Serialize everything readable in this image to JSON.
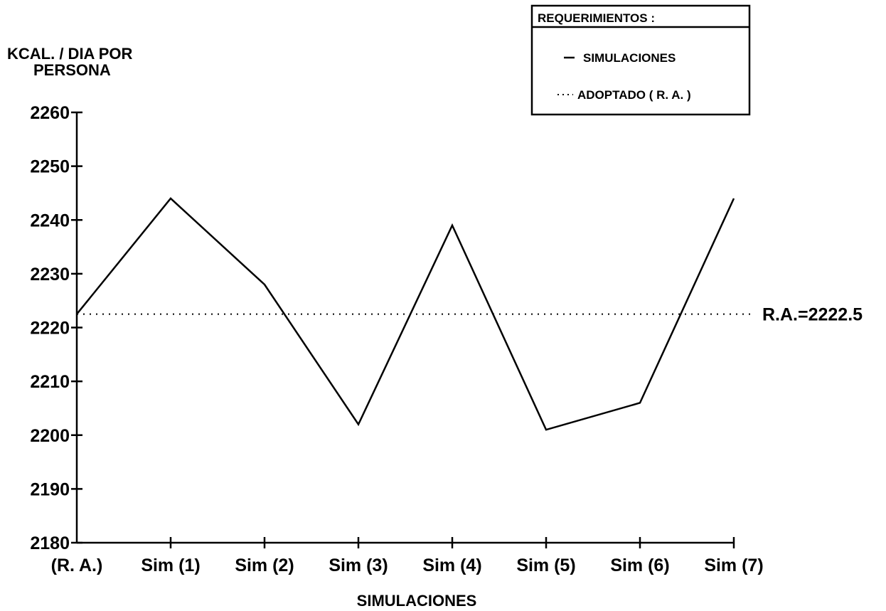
{
  "chart_data": {
    "type": "line",
    "title": "",
    "ylabel_line1": "KCAL. / DIA POR",
    "ylabel_line2": "PERSONA",
    "xlabel": "SIMULACIONES",
    "categories": [
      "(R. A.)",
      "Sim (1)",
      "Sim (2)",
      "Sim (3)",
      "Sim (4)",
      "Sim (5)",
      "Sim (6)",
      "Sim (7)"
    ],
    "series": [
      {
        "name": "SIMULACIONES",
        "values": [
          2222.5,
          2244,
          2228,
          2202,
          2239,
          2201,
          2206,
          2244
        ],
        "style": "solid"
      }
    ],
    "reference_line": {
      "name": "ADOPTADO ( R. A. )",
      "value": 2222.5,
      "label": "R.A.=2222.5",
      "style": "dotted"
    },
    "ylim": [
      2180,
      2260
    ],
    "yticks": [
      2180,
      2190,
      2200,
      2210,
      2220,
      2230,
      2240,
      2250,
      2260
    ],
    "legend": {
      "title": "REQUERIMIENTOS :",
      "placement": "top-right",
      "items": [
        "SIMULACIONES",
        "ADOPTADO ( R. A. )"
      ]
    },
    "grid": false,
    "colors": {
      "line": "#000000",
      "background": "#ffffff"
    }
  }
}
